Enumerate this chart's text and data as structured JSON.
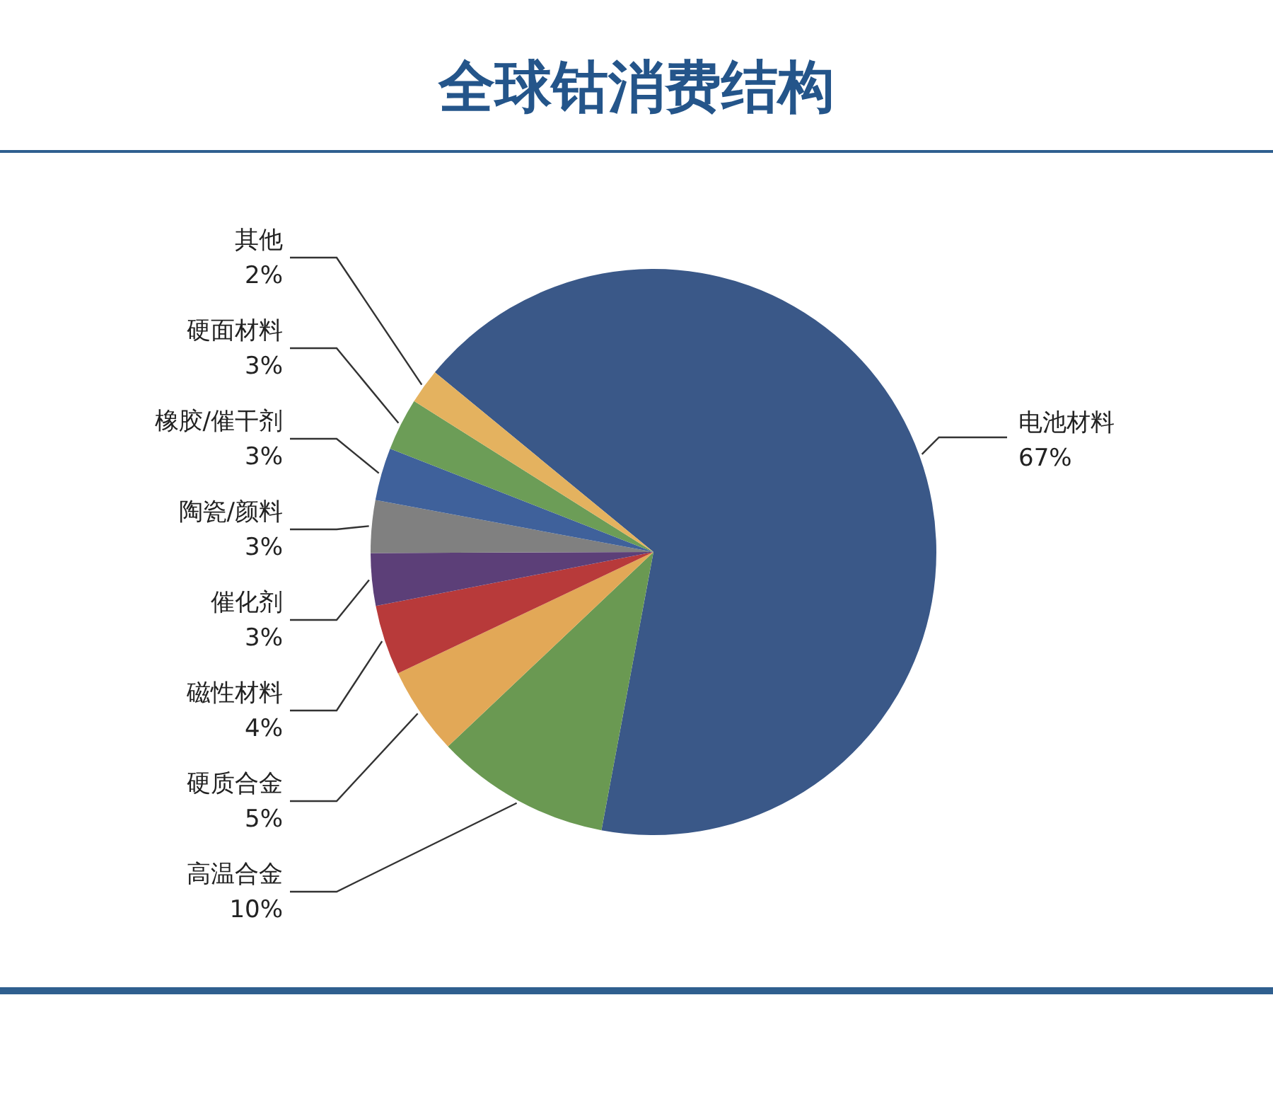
{
  "chart_data": {
    "type": "pie",
    "title": "全球钴消费结构",
    "categories": [
      "电池材料",
      "高温合金",
      "硬质合金",
      "磁性材料",
      "催化剂",
      "陶瓷/颜料",
      "橡胶/催干剂",
      "硬面材料",
      "其他"
    ],
    "values": [
      67,
      10,
      5,
      4,
      3,
      3,
      3,
      3,
      2
    ],
    "value_labels": [
      "67%",
      "10%",
      "5%",
      "4%",
      "3%",
      "3%",
      "3%",
      "3%",
      "2%"
    ],
    "colors": [
      "#3a5888",
      "#6a9952",
      "#e2a857",
      "#b83a3a",
      "#5c3f78",
      "#808080",
      "#3f619b",
      "#6c9d57",
      "#e4b25f"
    ]
  }
}
